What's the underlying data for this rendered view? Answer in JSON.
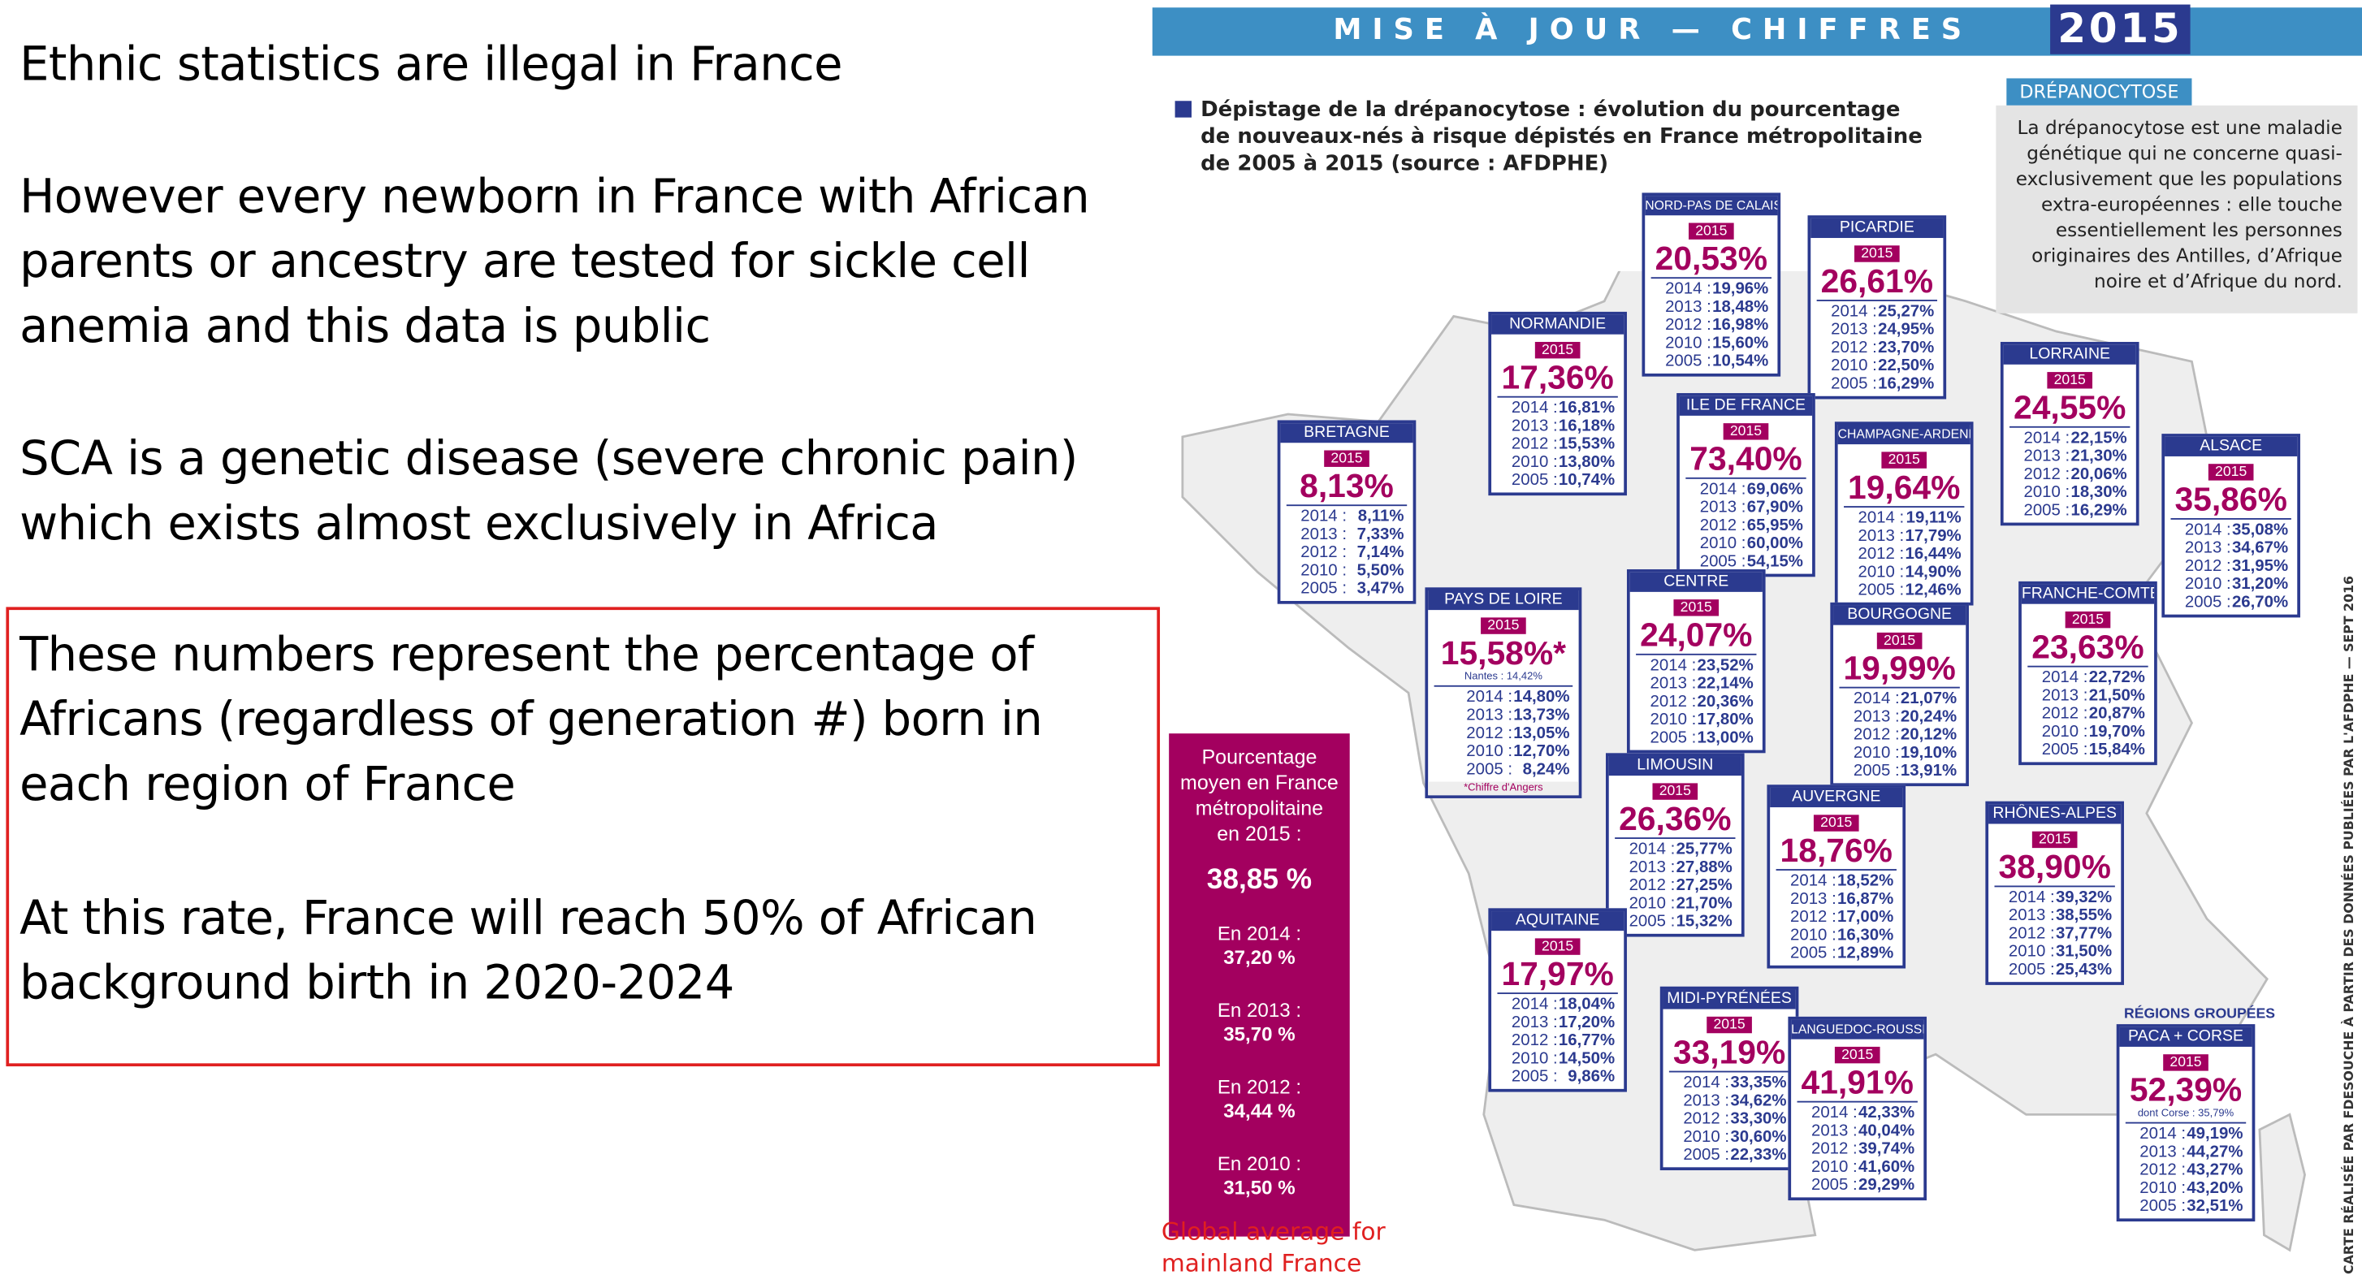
{
  "left": {
    "paragraphs": [
      [
        "Ethnic statistics are illegal in France"
      ],
      [
        "However every newborn in France with African",
        "parents or ancestry are tested for sickle cell",
        "anemia and this data is public"
      ],
      [
        "SCA is a genetic disease (severe chronic pain)",
        "which exists almost exclusively in Africa"
      ],
      [
        "These numbers represent the percentage of",
        "Africans (regardless of generation #) born in",
        "each region of France"
      ],
      [
        "At this rate, France will reach 50% of African",
        "background birth in 2020-2024"
      ]
    ]
  },
  "infographic": {
    "banner": "MISE À JOUR — CHIFFRES",
    "banner_year": "2015",
    "title": [
      "Dépistage de la drépanocytose : évolution du pourcentage",
      "de nouveaux-nés à risque dépistés en France métropolitaine",
      "de 2005 à 2015 (source : AFDPHE)"
    ],
    "side_tag": "DRÉPANOCYTOSE",
    "side_text": [
      "La drépanocytose est une maladie",
      "génétique qui ne concerne quasi-",
      "exclusivement que les populations",
      "extra-européennes : elle touche",
      "essentiellement les personnes",
      "originaires des Antilles, d’Afrique",
      "noire et d’Afrique du nord."
    ],
    "average": {
      "label": [
        "Pourcentage",
        "moyen en France",
        "métropolitaine",
        "en 2015 :"
      ],
      "value": "38,85 %",
      "history": [
        {
          "year": "En 2014 :",
          "value": "37,20 %"
        },
        {
          "year": "En 2013 :",
          "value": "35,70 %"
        },
        {
          "year": "En 2012 :",
          "value": "34,44 %"
        },
        {
          "year": "En 2010 :",
          "value": "31,50 %"
        }
      ]
    },
    "average_caption": [
      "Global average for",
      "mainland France"
    ],
    "credit": "CARTE RÉALISÉE PAR FDESOUCHE À PARTIR DES DONNÉES PUBLIÉES PAR L'AFDPHE — SEPT 2016",
    "year_tag": "2015",
    "regions": [
      {
        "name": "NORD-PAS DE CALAIS",
        "value": "20,53%",
        "rows": [
          {
            "year": "2014 :",
            "value": "19,96%"
          },
          {
            "year": "2013 :",
            "value": "18,48%"
          },
          {
            "year": "2012 :",
            "value": "16,98%"
          },
          {
            "year": "2010 :",
            "value": "15,60%"
          },
          {
            "year": "2005 :",
            "value": "10,54%"
          }
        ]
      },
      {
        "name": "PICARDIE",
        "value": "26,61%",
        "rows": [
          {
            "year": "2014 :",
            "value": "25,27%"
          },
          {
            "year": "2013 :",
            "value": "24,95%"
          },
          {
            "year": "2012 :",
            "value": "23,70%"
          },
          {
            "year": "2010 :",
            "value": "22,50%"
          },
          {
            "year": "2005 :",
            "value": "16,29%"
          }
        ]
      },
      {
        "name": "NORMANDIE",
        "value": "17,36%",
        "rows": [
          {
            "year": "2014 :",
            "value": "16,81%"
          },
          {
            "year": "2013 :",
            "value": "16,18%"
          },
          {
            "year": "2012 :",
            "value": "15,53%"
          },
          {
            "year": "2010 :",
            "value": "13,80%"
          },
          {
            "year": "2005 :",
            "value": "10,74%"
          }
        ]
      },
      {
        "name": "BRETAGNE",
        "value": "8,13%",
        "rows": [
          {
            "year": "2014 :",
            "value": "8,11%"
          },
          {
            "year": "2013 :",
            "value": "7,33%"
          },
          {
            "year": "2012 :",
            "value": "7,14%"
          },
          {
            "year": "2010 :",
            "value": "5,50%"
          },
          {
            "year": "2005 :",
            "value": "3,47%"
          }
        ]
      },
      {
        "name": "ILE DE FRANCE",
        "value": "73,40%",
        "rows": [
          {
            "year": "2014 :",
            "value": "69,06%"
          },
          {
            "year": "2013 :",
            "value": "67,90%"
          },
          {
            "year": "2012 :",
            "value": "65,95%"
          },
          {
            "year": "2010 :",
            "value": "60,00%"
          },
          {
            "year": "2005 :",
            "value": "54,15%"
          }
        ]
      },
      {
        "name": "CHAMPAGNE-ARDENNES",
        "value": "19,64%",
        "rows": [
          {
            "year": "2014 :",
            "value": "19,11%"
          },
          {
            "year": "2013 :",
            "value": "17,79%"
          },
          {
            "year": "2012 :",
            "value": "16,44%"
          },
          {
            "year": "2010 :",
            "value": "14,90%"
          },
          {
            "year": "2005 :",
            "value": "12,46%"
          }
        ]
      },
      {
        "name": "LORRAINE",
        "value": "24,55%",
        "rows": [
          {
            "year": "2014 :",
            "value": "22,15%"
          },
          {
            "year": "2013 :",
            "value": "21,30%"
          },
          {
            "year": "2012 :",
            "value": "20,06%"
          },
          {
            "year": "2010 :",
            "value": "18,30%"
          },
          {
            "year": "2005 :",
            "value": "16,29%"
          }
        ]
      },
      {
        "name": "ALSACE",
        "value": "35,86%",
        "rows": [
          {
            "year": "2014 :",
            "value": "35,08%"
          },
          {
            "year": "2013 :",
            "value": "34,67%"
          },
          {
            "year": "2012 :",
            "value": "31,95%"
          },
          {
            "year": "2010 :",
            "value": "31,20%"
          },
          {
            "year": "2005 :",
            "value": "26,70%"
          }
        ]
      },
      {
        "name": "PAYS DE LOIRE",
        "value": "15,58%*",
        "note": "Nantes : 14,42%",
        "footnote": "*Chiffre d'Angers",
        "rows": [
          {
            "year": "2014 :",
            "value": "14,80%"
          },
          {
            "year": "2013 :",
            "value": "13,73%"
          },
          {
            "year": "2012 :",
            "value": "13,05%"
          },
          {
            "year": "2010 :",
            "value": "12,70%"
          },
          {
            "year": "2005 :",
            "value": "8,24%"
          }
        ]
      },
      {
        "name": "CENTRE",
        "value": "24,07%",
        "rows": [
          {
            "year": "2014 :",
            "value": "23,52%"
          },
          {
            "year": "2013 :",
            "value": "22,14%"
          },
          {
            "year": "2012 :",
            "value": "20,36%"
          },
          {
            "year": "2010 :",
            "value": "17,80%"
          },
          {
            "year": "2005 :",
            "value": "13,00%"
          }
        ]
      },
      {
        "name": "BOURGOGNE",
        "value": "19,99%",
        "rows": [
          {
            "year": "2014 :",
            "value": "21,07%"
          },
          {
            "year": "2013 :",
            "value": "20,24%"
          },
          {
            "year": "2012 :",
            "value": "20,12%"
          },
          {
            "year": "2010 :",
            "value": "19,10%"
          },
          {
            "year": "2005 :",
            "value": "13,91%"
          }
        ]
      },
      {
        "name": "FRANCHE-COMTÉ",
        "value": "23,63%",
        "rows": [
          {
            "year": "2014 :",
            "value": "22,72%"
          },
          {
            "year": "2013 :",
            "value": "21,50%"
          },
          {
            "year": "2012 :",
            "value": "20,87%"
          },
          {
            "year": "2010 :",
            "value": "19,70%"
          },
          {
            "year": "2005 :",
            "value": "15,84%"
          }
        ]
      },
      {
        "name": "LIMOUSIN",
        "value": "26,36%",
        "rows": [
          {
            "year": "2014 :",
            "value": "25,77%"
          },
          {
            "year": "2013 :",
            "value": "27,88%"
          },
          {
            "year": "2012 :",
            "value": "27,25%"
          },
          {
            "year": "2010 :",
            "value": "21,70%"
          },
          {
            "year": "2005 :",
            "value": "15,32%"
          }
        ]
      },
      {
        "name": "AUVERGNE",
        "value": "18,76%",
        "rows": [
          {
            "year": "2014 :",
            "value": "18,52%"
          },
          {
            "year": "2013 :",
            "value": "16,87%"
          },
          {
            "year": "2012 :",
            "value": "17,00%"
          },
          {
            "year": "2010 :",
            "value": "16,30%"
          },
          {
            "year": "2005 :",
            "value": "12,89%"
          }
        ]
      },
      {
        "name": "RHÔNES-ALPES",
        "value": "38,90%",
        "rows": [
          {
            "year": "2014 :",
            "value": "39,32%"
          },
          {
            "year": "2013 :",
            "value": "38,55%"
          },
          {
            "year": "2012 :",
            "value": "37,77%"
          },
          {
            "year": "2010 :",
            "value": "31,50%"
          },
          {
            "year": "2005 :",
            "value": "25,43%"
          }
        ]
      },
      {
        "name": "AQUITAINE",
        "value": "17,97%",
        "rows": [
          {
            "year": "2014 :",
            "value": "18,04%"
          },
          {
            "year": "2013 :",
            "value": "17,20%"
          },
          {
            "year": "2012 :",
            "value": "16,77%"
          },
          {
            "year": "2010 :",
            "value": "14,50%"
          },
          {
            "year": "2005 :",
            "value": "9,86%"
          }
        ]
      },
      {
        "name": "MIDI-PYRÉNÉES",
        "value": "33,19%",
        "rows": [
          {
            "year": "2014 :",
            "value": "33,35%"
          },
          {
            "year": "2013 :",
            "value": "34,62%"
          },
          {
            "year": "2012 :",
            "value": "33,30%"
          },
          {
            "year": "2010 :",
            "value": "30,60%"
          },
          {
            "year": "2005 :",
            "value": "22,33%"
          }
        ]
      },
      {
        "name": "LANGUEDOC-ROUSSILLON",
        "value": "41,91%",
        "rows": [
          {
            "year": "2014 :",
            "value": "42,33%"
          },
          {
            "year": "2013 :",
            "value": "40,04%"
          },
          {
            "year": "2012 :",
            "value": "39,74%"
          },
          {
            "year": "2010 :",
            "value": "41,60%"
          },
          {
            "year": "2005 :",
            "value": "29,29%"
          }
        ]
      },
      {
        "name": "PACA + CORSE",
        "group": "RÉGIONS GROUPÉES",
        "value": "52,39%",
        "note": "dont Corse : 35,79%",
        "rows": [
          {
            "year": "2014 :",
            "value": "49,19%"
          },
          {
            "year": "2013 :",
            "value": "44,27%"
          },
          {
            "year": "2012 :",
            "value": "43,27%"
          },
          {
            "year": "2010 :",
            "value": "43,20%"
          },
          {
            "year": "2005 :",
            "value": "32,51%"
          }
        ]
      }
    ]
  }
}
